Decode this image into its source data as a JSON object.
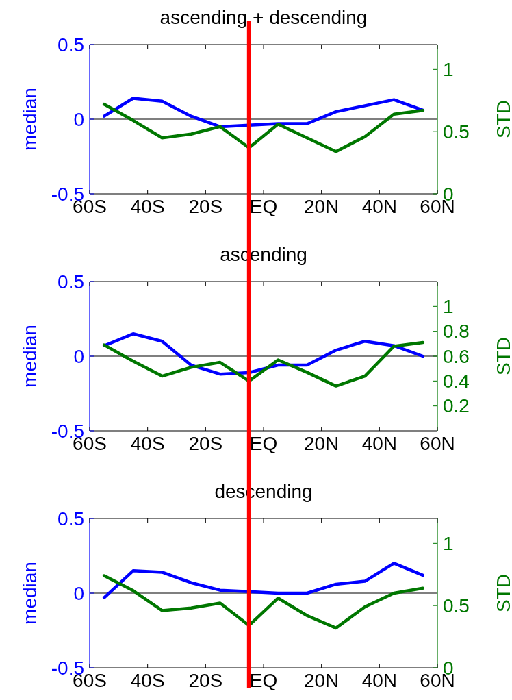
{
  "chart_data": [
    {
      "type": "line",
      "title": "ascending + descending",
      "ylabel": "median",
      "y2label": "STD",
      "x": [
        -55,
        -45,
        -35,
        -25,
        -15,
        -5,
        5,
        15,
        25,
        35,
        45,
        55
      ],
      "xlim": [
        -60,
        60
      ],
      "xticks": [
        {
          "value": -60,
          "label": "60S"
        },
        {
          "value": -40,
          "label": "40S"
        },
        {
          "value": -20,
          "label": "20S"
        },
        {
          "value": 0,
          "label": "EQ"
        },
        {
          "value": 20,
          "label": "20N"
        },
        {
          "value": 40,
          "label": "40N"
        },
        {
          "value": 60,
          "label": "60N"
        }
      ],
      "ylim": [
        -0.5,
        0.5
      ],
      "yticks": [
        -0.5,
        0,
        0.5
      ],
      "y2lim": [
        0,
        1.2
      ],
      "y2ticks": [
        0,
        0.5,
        1
      ],
      "grid": false,
      "series": [
        {
          "color": "#0000ff",
          "values": [
            0.02,
            0.14,
            0.12,
            0.02,
            -0.05,
            -0.04,
            -0.03,
            -0.03,
            0.05,
            0.09,
            0.13,
            0.06
          ]
        },
        {
          "color": "#007700",
          "axis": "y2",
          "values": [
            0.72,
            0.59,
            0.45,
            0.48,
            0.54,
            0.37,
            0.56,
            0.45,
            0.34,
            0.46,
            0.64,
            0.67
          ]
        }
      ],
      "ref_lines": [
        {
          "axis": "y",
          "value": 0,
          "color": "#000000"
        },
        {
          "axis": "x",
          "value": -5,
          "color": "#ff0000"
        }
      ]
    },
    {
      "type": "line",
      "title": "ascending",
      "ylabel": "median",
      "y2label": "STD",
      "x": [
        -55,
        -45,
        -35,
        -25,
        -15,
        -5,
        5,
        15,
        25,
        35,
        45,
        55
      ],
      "xlim": [
        -60,
        60
      ],
      "xticks": [
        {
          "value": -60,
          "label": "60S"
        },
        {
          "value": -40,
          "label": "40S"
        },
        {
          "value": -20,
          "label": "20S"
        },
        {
          "value": 0,
          "label": "EQ"
        },
        {
          "value": 20,
          "label": "20N"
        },
        {
          "value": 40,
          "label": "40N"
        },
        {
          "value": 60,
          "label": "60N"
        }
      ],
      "ylim": [
        -0.5,
        0.5
      ],
      "yticks": [
        -0.5,
        0,
        0.5
      ],
      "y2lim": [
        0,
        1.2
      ],
      "y2ticks": [
        0.2,
        0.4,
        0.6,
        0.8,
        1
      ],
      "grid": false,
      "series": [
        {
          "color": "#0000ff",
          "values": [
            0.07,
            0.15,
            0.1,
            -0.06,
            -0.12,
            -0.11,
            -0.06,
            -0.06,
            0.04,
            0.1,
            0.07,
            0.0
          ]
        },
        {
          "color": "#007700",
          "axis": "y2",
          "values": [
            0.69,
            0.56,
            0.44,
            0.51,
            0.55,
            0.4,
            0.57,
            0.47,
            0.36,
            0.44,
            0.68,
            0.71
          ]
        }
      ],
      "ref_lines": [
        {
          "axis": "y",
          "value": 0,
          "color": "#000000"
        },
        {
          "axis": "x",
          "value": -5,
          "color": "#ff0000"
        }
      ]
    },
    {
      "type": "line",
      "title": "descending",
      "ylabel": "median",
      "y2label": "STD",
      "x": [
        -55,
        -45,
        -35,
        -25,
        -15,
        -5,
        5,
        15,
        25,
        35,
        45,
        55
      ],
      "xlim": [
        -60,
        60
      ],
      "xticks": [
        {
          "value": -60,
          "label": "60S"
        },
        {
          "value": -40,
          "label": "40S"
        },
        {
          "value": -20,
          "label": "20S"
        },
        {
          "value": 0,
          "label": "EQ"
        },
        {
          "value": 20,
          "label": "20N"
        },
        {
          "value": 40,
          "label": "40N"
        },
        {
          "value": 60,
          "label": "60N"
        }
      ],
      "ylim": [
        -0.5,
        0.5
      ],
      "yticks": [
        -0.5,
        0,
        0.5
      ],
      "y2lim": [
        0,
        1.2
      ],
      "y2ticks": [
        0,
        0.5,
        1
      ],
      "grid": false,
      "series": [
        {
          "color": "#0000ff",
          "values": [
            -0.03,
            0.15,
            0.14,
            0.07,
            0.02,
            0.01,
            0.0,
            0.0,
            0.06,
            0.08,
            0.2,
            0.12
          ]
        },
        {
          "color": "#007700",
          "axis": "y2",
          "values": [
            0.74,
            0.62,
            0.46,
            0.48,
            0.52,
            0.34,
            0.56,
            0.42,
            0.32,
            0.49,
            0.6,
            0.64
          ]
        }
      ],
      "ref_lines": [
        {
          "axis": "y",
          "value": 0,
          "color": "#000000"
        },
        {
          "axis": "x",
          "value": -5,
          "color": "#ff0000"
        }
      ]
    }
  ]
}
